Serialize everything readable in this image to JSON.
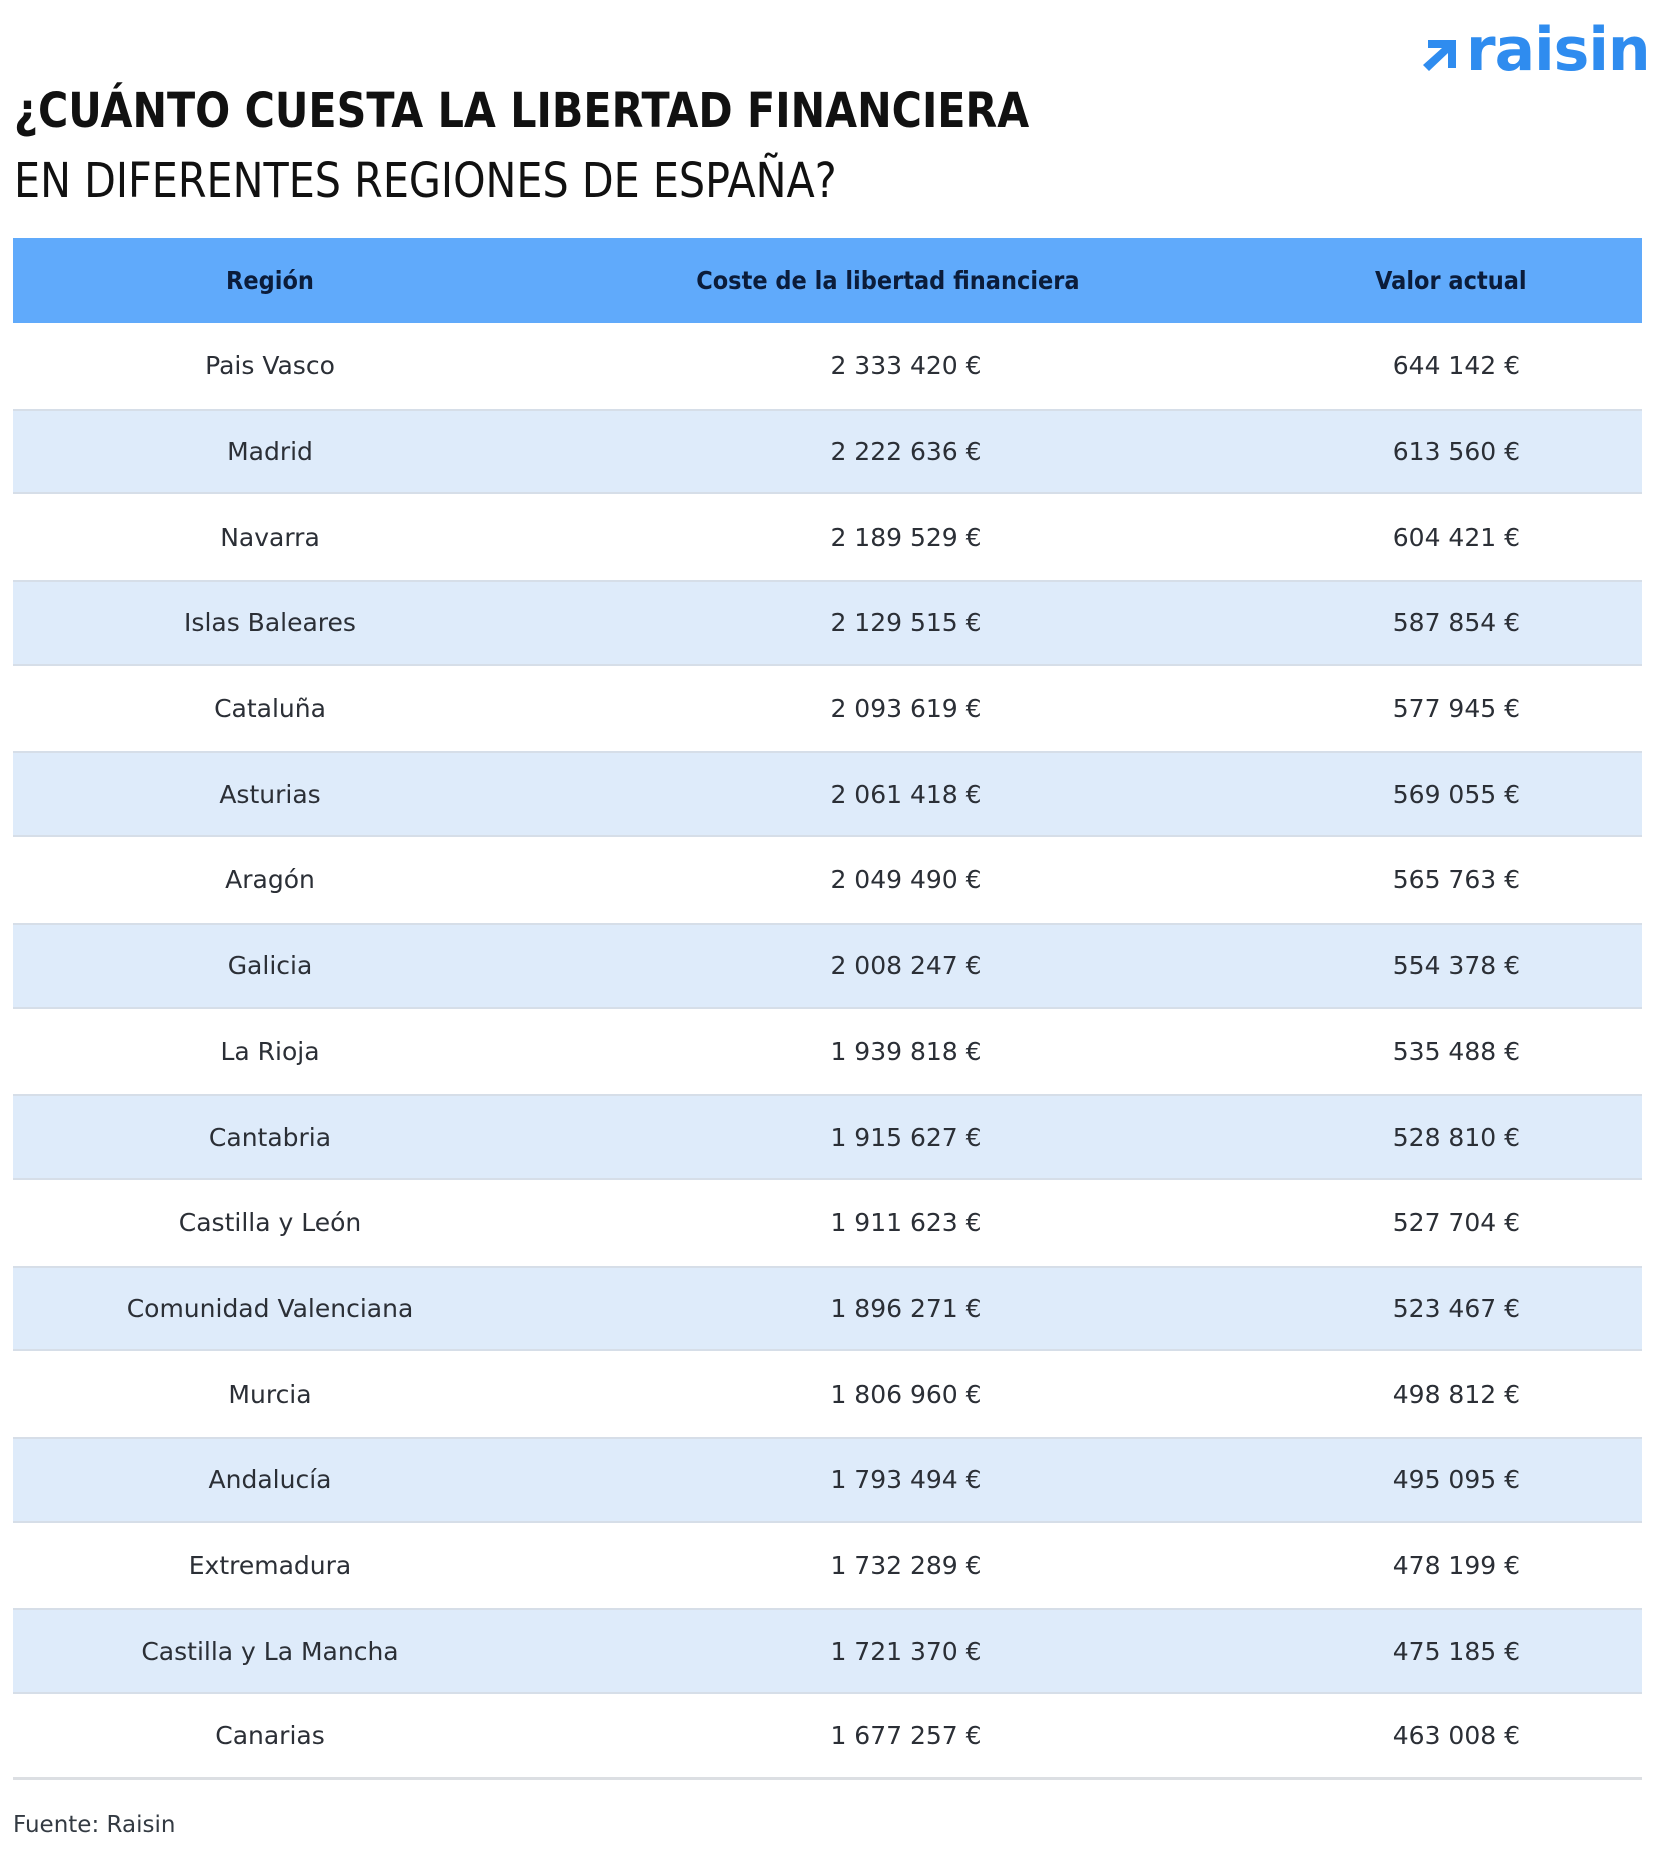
{
  "brand": {
    "logo_text": "raisin",
    "logo_icon": "arrow-up-right-icon",
    "accent_color": "#2f8cef"
  },
  "title": {
    "line1": "¿CUÁNTO CUESTA LA LIBERTAD FINANCIERA",
    "line2": "EN DIFERENTES REGIONES DE ESPAÑA?"
  },
  "table": {
    "header_color": "#60aafb",
    "stripe_color": "#deebfa",
    "columns": [
      "Región",
      "Coste de la libertad financiera",
      "Valor actual"
    ],
    "rows": [
      {
        "region": "Pais Vasco",
        "coste": "2 333 420 €",
        "valor": "644 142 €"
      },
      {
        "region": "Madrid",
        "coste": "2 222 636 €",
        "valor": "613 560 €"
      },
      {
        "region": "Navarra",
        "coste": "2 189 529 €",
        "valor": "604 421 €"
      },
      {
        "region": "Islas Baleares",
        "coste": "2 129 515 €",
        "valor": "587 854 €"
      },
      {
        "region": "Cataluña",
        "coste": "2 093 619 €",
        "valor": "577 945 €"
      },
      {
        "region": "Asturias",
        "coste": "2 061 418 €",
        "valor": "569 055 €"
      },
      {
        "region": "Aragón",
        "coste": "2 049 490 €",
        "valor": "565 763 €"
      },
      {
        "region": "Galicia",
        "coste": "2 008 247 €",
        "valor": "554 378 €"
      },
      {
        "region": "La Rioja",
        "coste": "1 939 818 €",
        "valor": "535 488 €"
      },
      {
        "region": "Cantabria",
        "coste": "1 915 627 €",
        "valor": "528 810 €"
      },
      {
        "region": "Castilla y León",
        "coste": "1 911 623 €",
        "valor": "527 704 €"
      },
      {
        "region": "Comunidad Valenciana",
        "coste": "1 896 271 €",
        "valor": "523 467 €"
      },
      {
        "region": "Murcia",
        "coste": "1 806 960 €",
        "valor": "498 812 €"
      },
      {
        "region": "Andalucía",
        "coste": "1 793 494 €",
        "valor": "495 095 €"
      },
      {
        "region": "Extremadura",
        "coste": "1 732 289 €",
        "valor": "478 199 €"
      },
      {
        "region": "Castilla y La Mancha",
        "coste": "1 721 370 €",
        "valor": "475 185 €"
      },
      {
        "region": "Canarias",
        "coste": "1 677 257 €",
        "valor": "463 008 €"
      }
    ]
  },
  "footer": {
    "source": "Fuente: Raisin"
  }
}
